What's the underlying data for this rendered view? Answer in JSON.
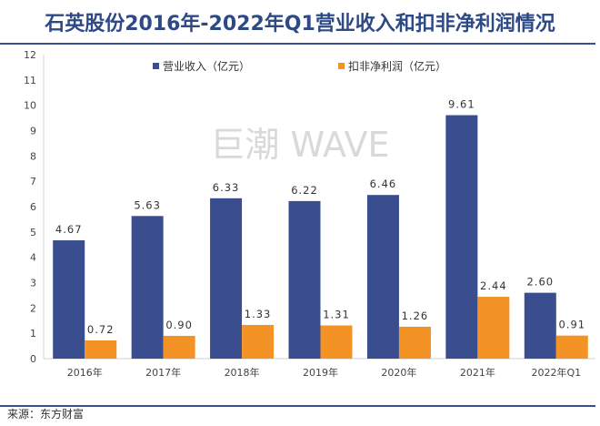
{
  "title": "石英股份2016年-2022年Q1营业收入和扣非净利润情况",
  "source": "来源：东方财富",
  "watermark": "巨潮 WAVE",
  "chart_data": {
    "type": "bar",
    "title": "石英股份2016年-2022年Q1营业收入和扣非净利润情况",
    "categories": [
      "2016年",
      "2017年",
      "2018年",
      "2019年",
      "2020年",
      "2021年",
      "2022年Q1"
    ],
    "series": [
      {
        "name": "营业收入（亿元）",
        "color": "#3a4d8f",
        "values": [
          4.67,
          5.63,
          6.33,
          6.22,
          6.46,
          9.61,
          2.6
        ],
        "labels": [
          "4.67",
          "5.63",
          "6.33",
          "6.22",
          "6.46",
          "9.61",
          "2.60"
        ]
      },
      {
        "name": "扣非净利润（亿元）",
        "color": "#f39325",
        "values": [
          0.72,
          0.9,
          1.33,
          1.31,
          1.26,
          2.44,
          0.91
        ],
        "labels": [
          "0.72",
          "0.90",
          "1.33",
          "1.31",
          "1.26",
          "2.44",
          "0.91"
        ]
      }
    ],
    "ylim": [
      0,
      12
    ],
    "yticks": [
      "0",
      "1",
      "2",
      "3",
      "4",
      "5",
      "6",
      "7",
      "8",
      "9",
      "10",
      "11",
      "12"
    ],
    "xlabel": "",
    "ylabel": "",
    "grid": false,
    "legend": "top"
  }
}
